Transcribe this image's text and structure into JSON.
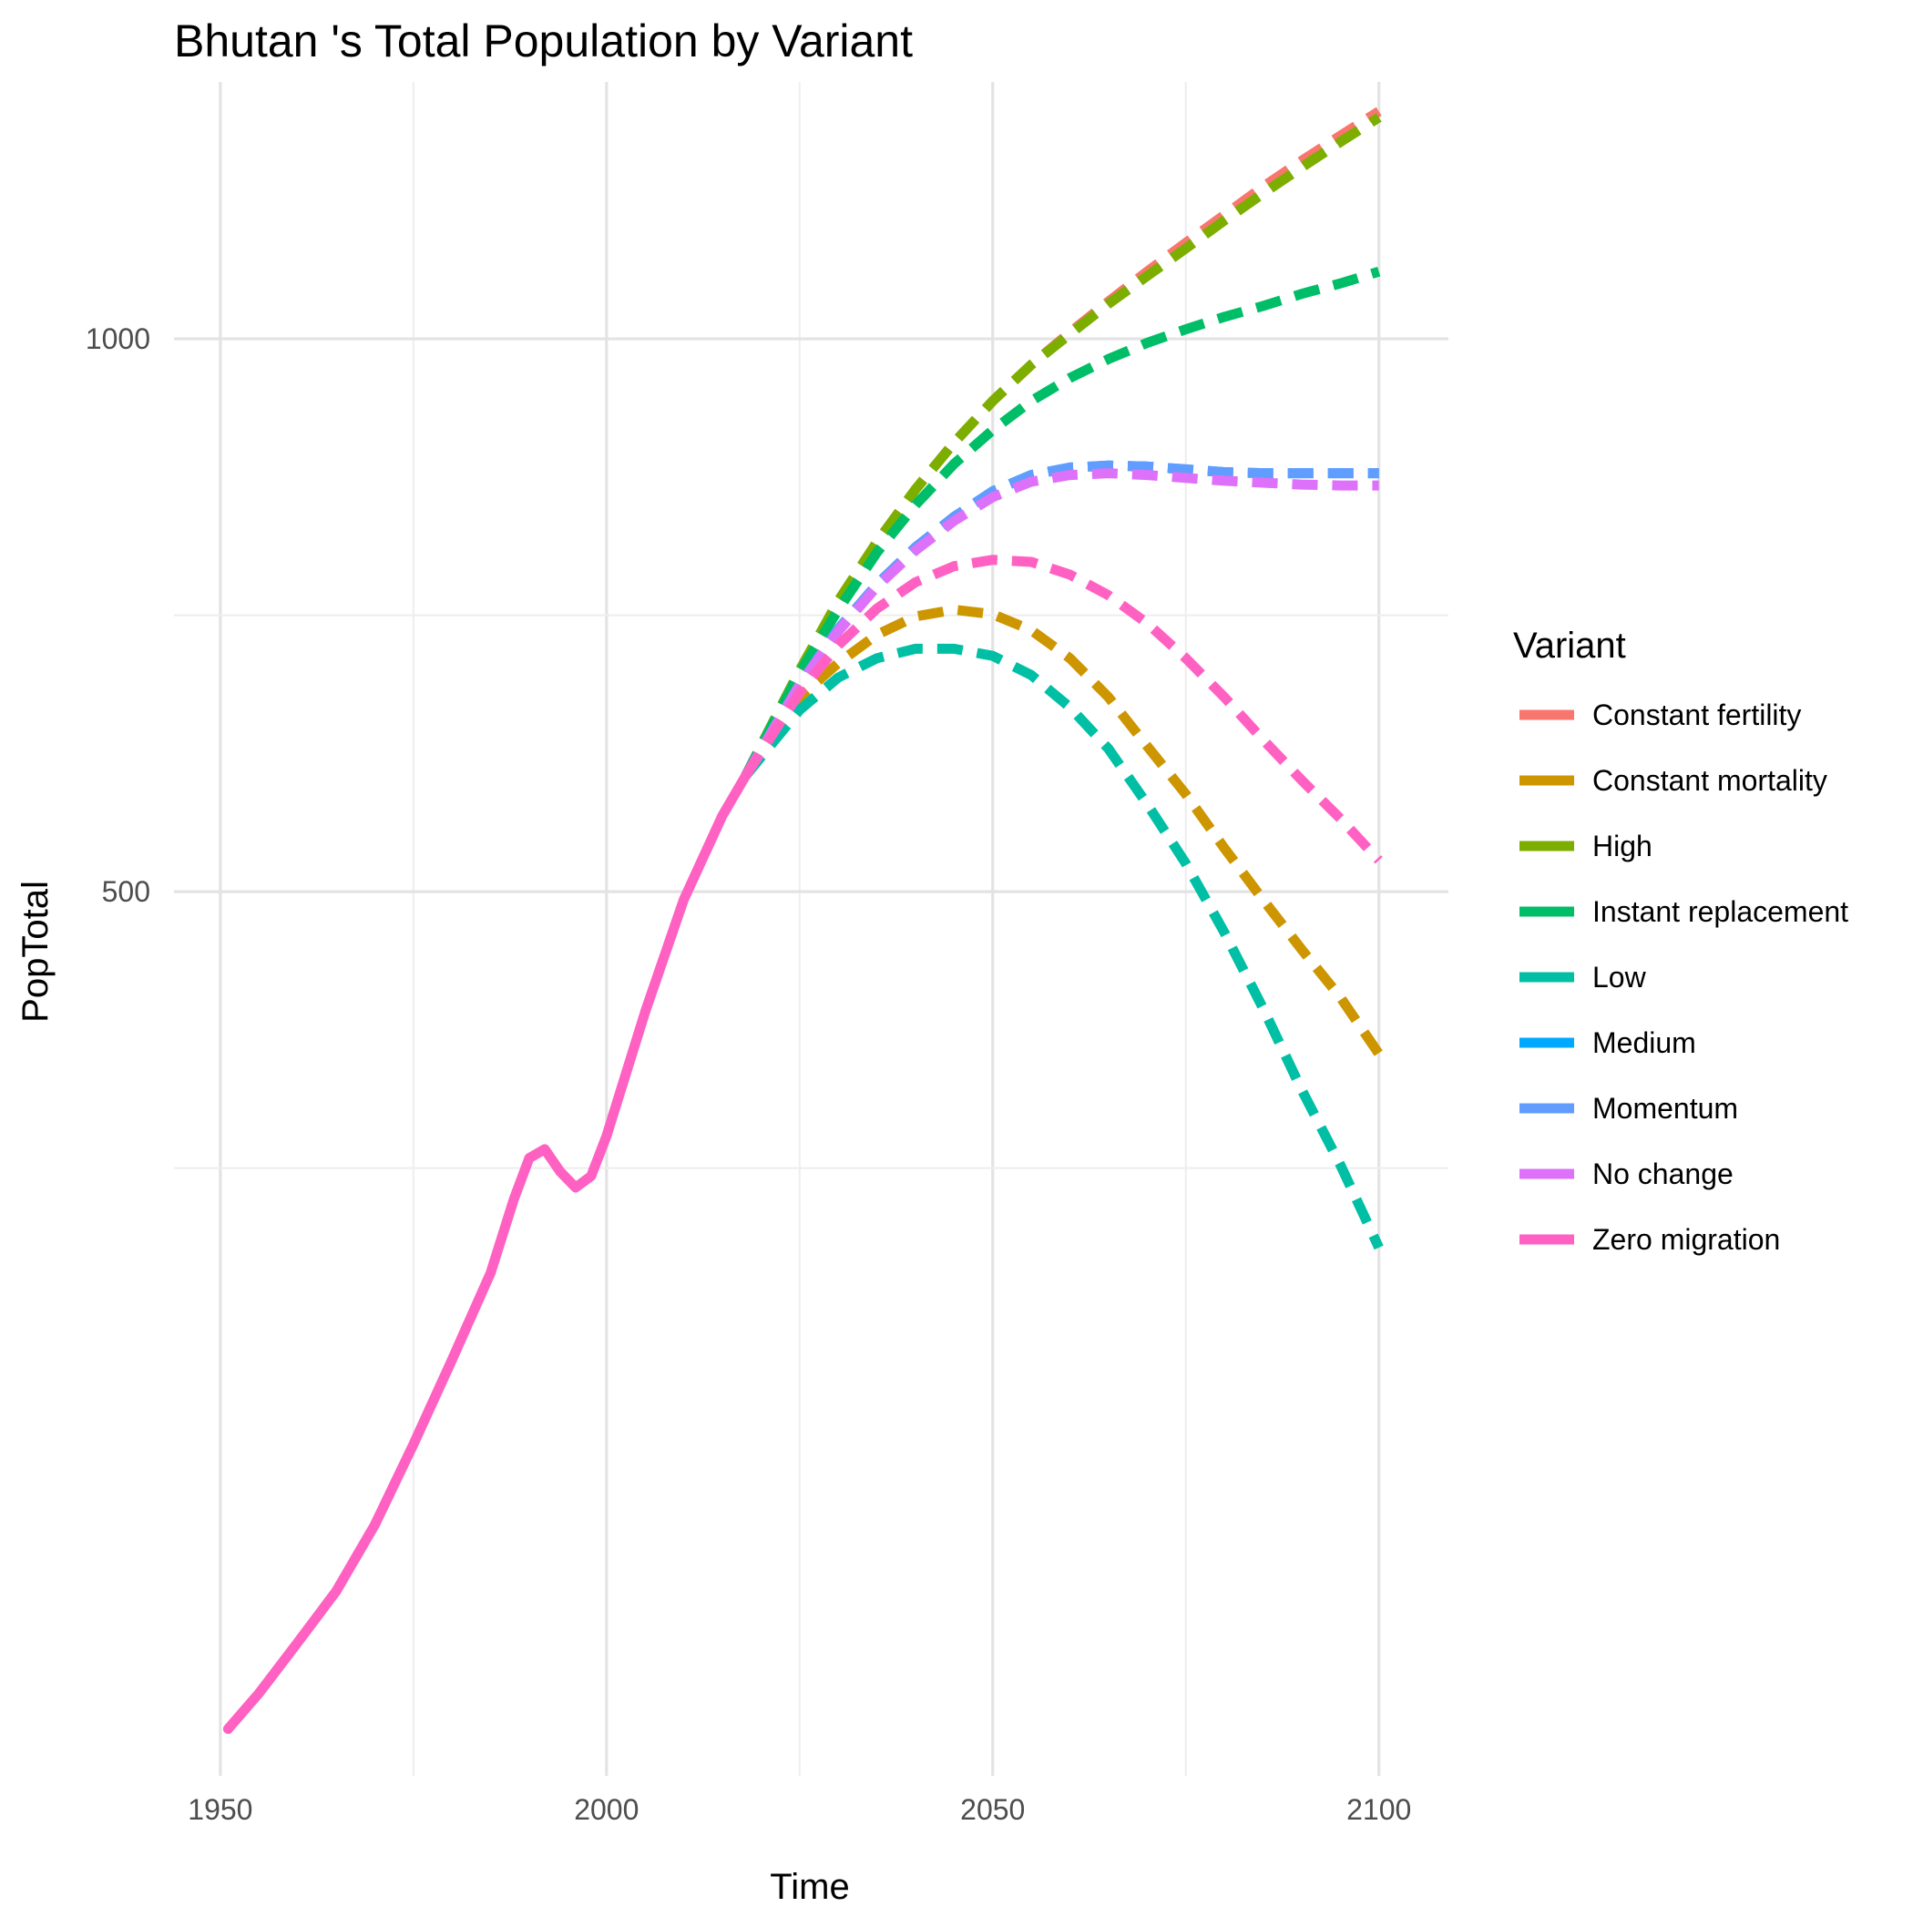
{
  "chart_data": {
    "type": "line",
    "title": "Bhutan 's Total Population by Variant",
    "xlabel": "Time",
    "ylabel": "PopTotal",
    "x_ticks": [
      1950,
      2000,
      2050,
      2100
    ],
    "y_ticks": [
      500,
      1000
    ],
    "xlim": [
      1944,
      2109
    ],
    "ylim": [
      165,
      1380
    ],
    "y_scale": "log",
    "grid": true,
    "legend": {
      "title": "Variant",
      "position": "right",
      "entries": [
        "Constant fertility",
        "Constant mortality",
        "High",
        "Instant replacement",
        "Low",
        "Medium",
        "Momentum",
        "No change",
        "Zero migration"
      ]
    },
    "colors": {
      "Constant fertility": "#F8766D",
      "Constant mortality": "#CD9600",
      "High": "#7CAE00",
      "Instant replacement": "#00BE67",
      "Low": "#00BFA5",
      "Medium": "#00A9FF",
      "Momentum": "#619CFF",
      "No change": "#DE71F9",
      "Zero migration": "#FF61C3"
    },
    "historical": {
      "name": "Zero migration",
      "x": [
        1951,
        1955,
        1960,
        1965,
        1970,
        1975,
        1980,
        1985,
        1988,
        1990,
        1992,
        1994,
        1996,
        1998,
        2000,
        2005,
        2010,
        2015,
        2018
      ],
      "y": [
        175,
        183,
        195,
        208,
        226,
        250,
        278,
        310,
        340,
        358,
        362,
        352,
        345,
        350,
        368,
        430,
        495,
        550,
        578
      ]
    },
    "series": [
      {
        "name": "Constant fertility",
        "x": [
          2018,
          2025,
          2030,
          2035,
          2040,
          2045,
          2050,
          2055,
          2060,
          2065,
          2070,
          2075,
          2080,
          2085,
          2090,
          2095,
          2100
        ],
        "y": [
          578,
          660,
          718,
          775,
          828,
          878,
          925,
          968,
          1008,
          1048,
          1088,
          1128,
          1168,
          1210,
          1250,
          1290,
          1330
        ]
      },
      {
        "name": "Constant mortality",
        "x": [
          2018,
          2025,
          2030,
          2035,
          2040,
          2045,
          2050,
          2055,
          2060,
          2065,
          2070,
          2075,
          2080,
          2085,
          2090,
          2095,
          2100
        ],
        "y": [
          578,
          638,
          666,
          690,
          706,
          712,
          708,
          694,
          670,
          638,
          600,
          565,
          528,
          495,
          465,
          438,
          408
        ]
      },
      {
        "name": "High",
        "x": [
          2018,
          2025,
          2030,
          2035,
          2040,
          2045,
          2050,
          2055,
          2060,
          2065,
          2070,
          2075,
          2080,
          2085,
          2090,
          2095,
          2100
        ],
        "y": [
          578,
          660,
          720,
          775,
          828,
          878,
          925,
          968,
          1006,
          1045,
          1082,
          1120,
          1160,
          1200,
          1240,
          1280,
          1320
        ]
      },
      {
        "name": "Instant replacement",
        "x": [
          2018,
          2025,
          2030,
          2035,
          2040,
          2045,
          2050,
          2055,
          2060,
          2065,
          2070,
          2075,
          2080,
          2085,
          2090,
          2095,
          2100
        ],
        "y": [
          578,
          658,
          712,
          765,
          812,
          855,
          892,
          925,
          952,
          975,
          995,
          1012,
          1028,
          1042,
          1058,
          1072,
          1088
        ]
      },
      {
        "name": "Low",
        "x": [
          2018,
          2025,
          2030,
          2035,
          2040,
          2045,
          2050,
          2055,
          2060,
          2065,
          2070,
          2075,
          2080,
          2085,
          2090,
          2095,
          2100
        ],
        "y": [
          578,
          628,
          654,
          670,
          678,
          678,
          672,
          656,
          630,
          598,
          558,
          518,
          475,
          432,
          390,
          355,
          320
        ]
      },
      {
        "name": "Medium",
        "x": [
          2018,
          2025,
          2030,
          2035,
          2040,
          2045,
          2050,
          2055,
          2060,
          2065,
          2070,
          2075,
          2080,
          2085,
          2090,
          2095,
          2100
        ],
        "y": [
          578,
          648,
          695,
          735,
          770,
          800,
          826,
          843,
          851,
          853,
          852,
          849,
          846,
          845,
          845,
          845,
          845
        ]
      },
      {
        "name": "Momentum",
        "x": [
          2018,
          2025,
          2030,
          2035,
          2040,
          2045,
          2050,
          2055,
          2060,
          2065,
          2070,
          2075,
          2080,
          2085,
          2090,
          2095,
          2100
        ],
        "y": [
          578,
          648,
          695,
          735,
          770,
          800,
          826,
          843,
          851,
          853,
          852,
          849,
          846,
          845,
          845,
          845,
          845
        ]
      },
      {
        "name": "No change",
        "x": [
          2018,
          2025,
          2030,
          2035,
          2040,
          2045,
          2050,
          2055,
          2060,
          2065,
          2070,
          2075,
          2080,
          2085,
          2090,
          2095,
          2100
        ],
        "y": [
          578,
          648,
          693,
          733,
          767,
          796,
          820,
          836,
          843,
          845,
          843,
          840,
          837,
          835,
          833,
          832,
          832
        ]
      },
      {
        "name": "Zero migration",
        "x": [
          2018,
          2025,
          2030,
          2035,
          2040,
          2045,
          2050,
          2055,
          2060,
          2065,
          2070,
          2075,
          2080,
          2085,
          2090,
          2095,
          2100
        ],
        "y": [
          578,
          642,
          681,
          713,
          737,
          752,
          758,
          756,
          744,
          725,
          700,
          670,
          638,
          605,
          575,
          548,
          520
        ]
      }
    ]
  }
}
